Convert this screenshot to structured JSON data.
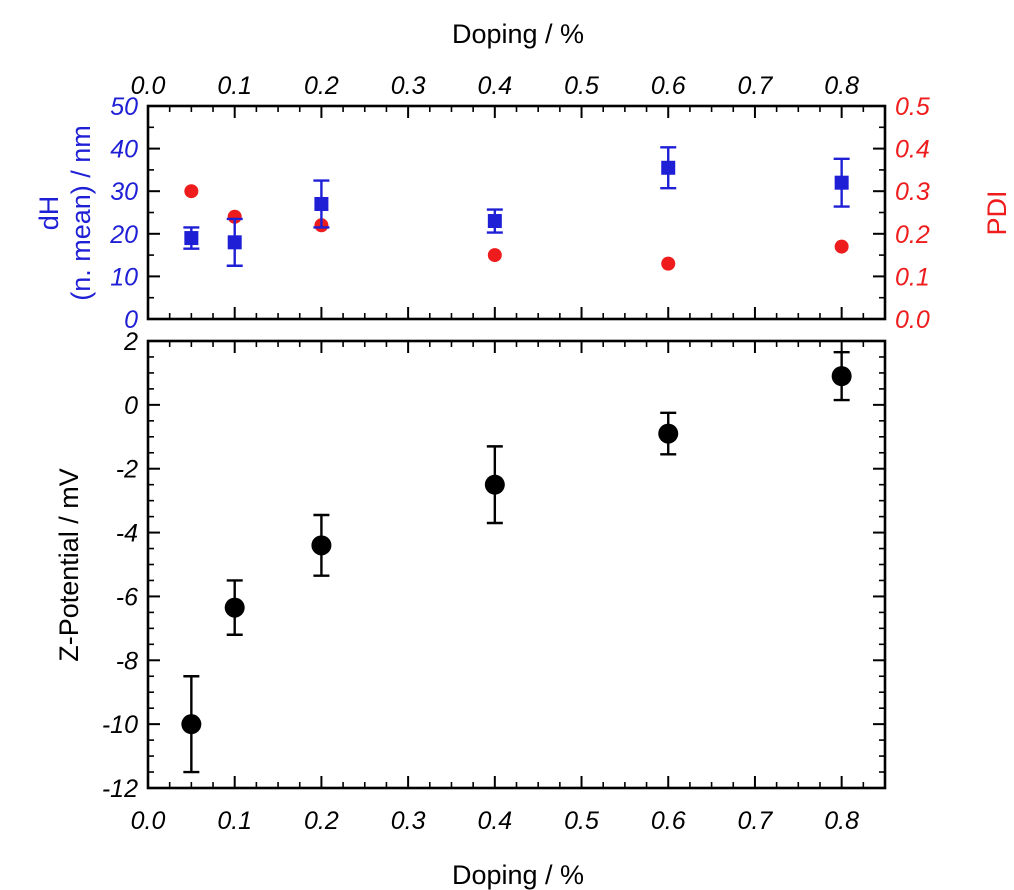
{
  "colors": {
    "dh": "#1f1fd6",
    "pdi": "#ee1c1c",
    "zeta": "#000000",
    "axis": "#000000"
  },
  "chart_data": [
    {
      "type": "scatter",
      "panel": "top",
      "xlabel": "Doping / %",
      "xlim": [
        0.0,
        0.85
      ],
      "xticks": [
        "0.0",
        "0.1",
        "0.2",
        "0.3",
        "0.4",
        "0.5",
        "0.6",
        "0.7",
        "0.8"
      ],
      "ylabel_left_line1": "dH",
      "ylabel_left_line2": "(n. mean) / nm",
      "ylim_left": [
        0,
        50
      ],
      "yticks_left": [
        "0",
        "10",
        "20",
        "30",
        "40",
        "50"
      ],
      "ylabel_right": "PDI",
      "ylim_right": [
        0.0,
        0.5
      ],
      "yticks_right": [
        "0.0",
        "0.1",
        "0.2",
        "0.3",
        "0.4",
        "0.5"
      ],
      "series": [
        {
          "axis": "left",
          "marker": "square",
          "x": [
            0.05,
            0.1,
            0.2,
            0.4,
            0.6,
            0.8
          ],
          "y": [
            19,
            18,
            27,
            23,
            35.5,
            32
          ],
          "err": [
            2.5,
            5.5,
            5.5,
            2.7,
            4.8,
            5.6
          ]
        },
        {
          "axis": "right",
          "marker": "circle",
          "x": [
            0.05,
            0.1,
            0.2,
            0.4,
            0.6,
            0.8
          ],
          "y": [
            0.3,
            0.24,
            0.22,
            0.15,
            0.13,
            0.17
          ]
        }
      ]
    },
    {
      "type": "scatter",
      "panel": "bottom",
      "xlabel": "Doping / %",
      "xlim": [
        0.0,
        0.85
      ],
      "xticks": [
        "0.0",
        "0.1",
        "0.2",
        "0.3",
        "0.4",
        "0.5",
        "0.6",
        "0.7",
        "0.8"
      ],
      "ylabel": "Z-Potential / mV",
      "ylim": [
        -12,
        2
      ],
      "yticks": [
        "-12",
        "-10",
        "-8",
        "-6",
        "-4",
        "-2",
        "0",
        "2"
      ],
      "series": [
        {
          "marker": "circle",
          "x": [
            0.05,
            0.1,
            0.2,
            0.4,
            0.6,
            0.8
          ],
          "y": [
            -10.0,
            -6.35,
            -4.4,
            -2.5,
            -0.9,
            0.9
          ],
          "err": [
            1.5,
            0.85,
            0.95,
            1.2,
            0.65,
            0.75
          ]
        }
      ]
    }
  ]
}
